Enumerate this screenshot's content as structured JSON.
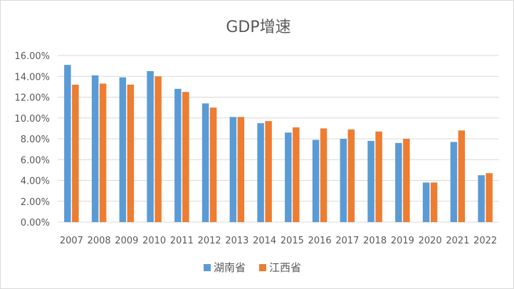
{
  "chart_data": {
    "type": "bar",
    "title": "GDP增速",
    "xlabel": "",
    "ylabel": "",
    "categories": [
      "2007",
      "2008",
      "2009",
      "2010",
      "2011",
      "2012",
      "2013",
      "2014",
      "2015",
      "2016",
      "2017",
      "2018",
      "2019",
      "2020",
      "2021",
      "2022"
    ],
    "series": [
      {
        "name": "湖南省",
        "color": "#5b9bd5",
        "values": [
          15.1,
          14.1,
          13.9,
          14.5,
          12.8,
          11.4,
          10.1,
          9.5,
          8.6,
          7.9,
          8.0,
          7.8,
          7.6,
          3.8,
          7.7,
          4.5
        ]
      },
      {
        "name": "江西省",
        "color": "#ed7d31",
        "values": [
          13.2,
          13.3,
          13.2,
          14.0,
          12.5,
          11.0,
          10.1,
          9.7,
          9.1,
          9.0,
          8.9,
          8.7,
          8.0,
          3.8,
          8.8,
          4.7
        ]
      }
    ],
    "ylim": [
      0,
      16
    ],
    "yticks": [
      "0.00%",
      "2.00%",
      "4.00%",
      "6.00%",
      "8.00%",
      "10.00%",
      "12.00%",
      "14.00%",
      "16.00%"
    ],
    "grid": true,
    "legend_position": "bottom"
  }
}
